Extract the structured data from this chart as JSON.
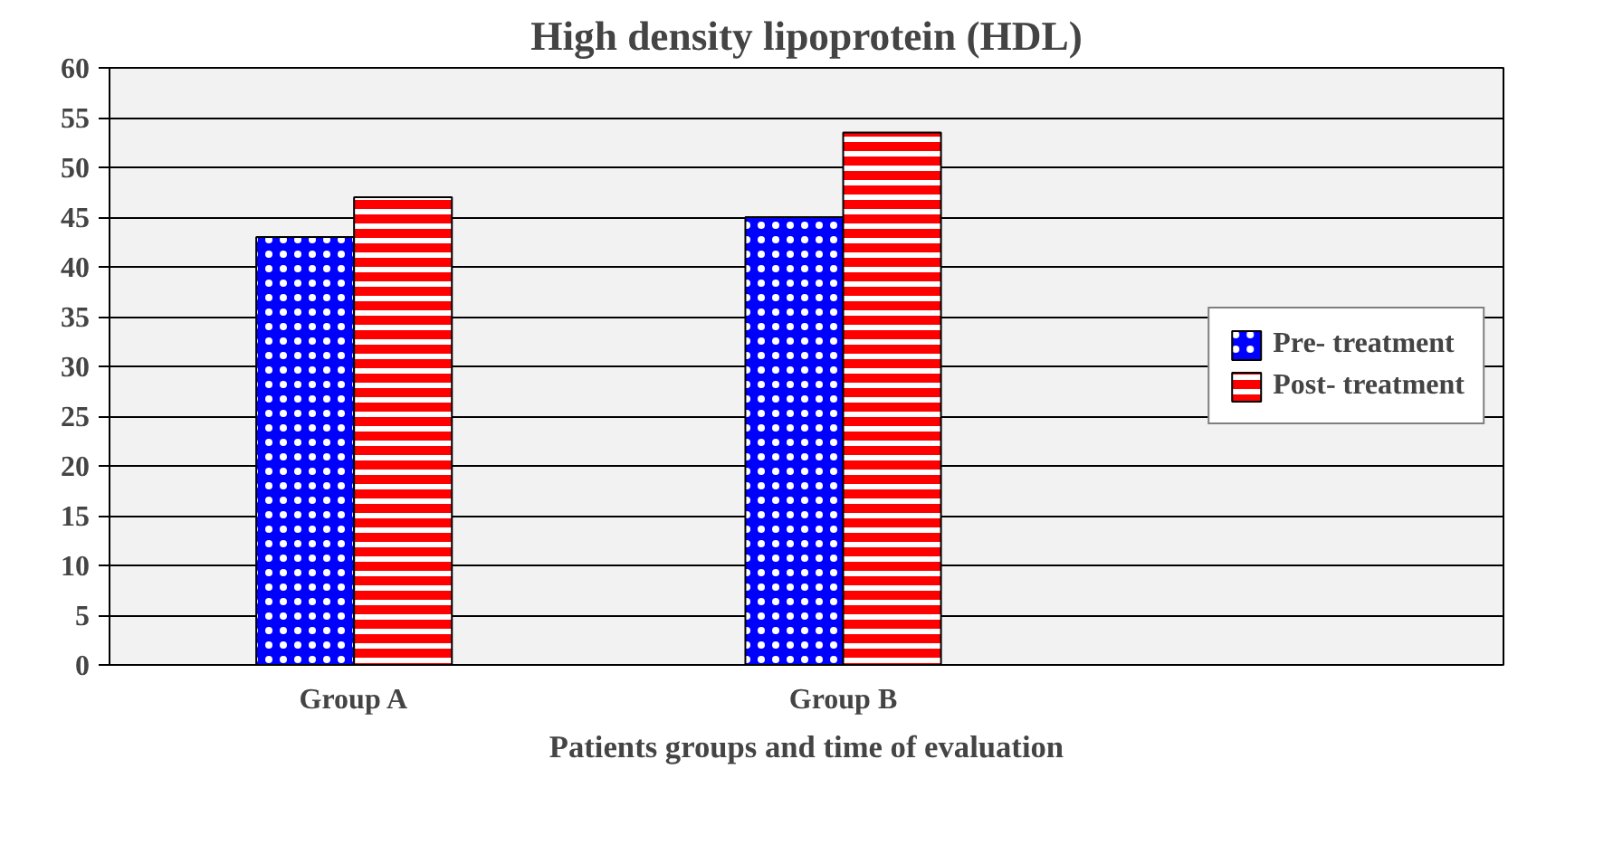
{
  "chart_data": {
    "type": "bar",
    "title": "High density lipoprotein (HDL)",
    "xlabel": "Patients groups and time of evaluation",
    "categories": [
      "Group A",
      "Group B"
    ],
    "series": [
      {
        "name": "Pre- treatment",
        "color": "#0000ff",
        "values": [
          43,
          45
        ]
      },
      {
        "name": "Post- treatment",
        "color": "#ff0000",
        "values": [
          47,
          53.5
        ]
      }
    ],
    "ylim": [
      0,
      60
    ],
    "yticks": [
      0,
      5,
      10,
      15,
      20,
      25,
      30,
      35,
      40,
      45,
      50,
      55,
      60
    ],
    "grid": "y",
    "legend": "right"
  }
}
